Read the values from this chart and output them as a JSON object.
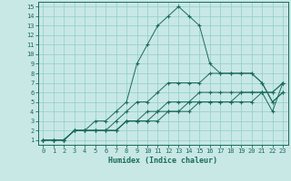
{
  "xlabel": "Humidex (Indice chaleur)",
  "xlim": [
    -0.5,
    23.5
  ],
  "ylim": [
    0.5,
    15.5
  ],
  "xticks": [
    0,
    1,
    2,
    3,
    4,
    5,
    6,
    7,
    8,
    9,
    10,
    11,
    12,
    13,
    14,
    15,
    16,
    17,
    18,
    19,
    20,
    21,
    22,
    23
  ],
  "yticks": [
    1,
    2,
    3,
    4,
    5,
    6,
    7,
    8,
    9,
    10,
    11,
    12,
    13,
    14,
    15
  ],
  "bg_color": "#c8e8e5",
  "grid_color": "#8ececa",
  "line_color": "#1a6b5a",
  "lines": [
    {
      "x": [
        0,
        1,
        2,
        3,
        4,
        5,
        6,
        7,
        8,
        9,
        10,
        11,
        12,
        13,
        14,
        15,
        16,
        17,
        18,
        19,
        20,
        21,
        22,
        23
      ],
      "y": [
        1,
        1,
        1,
        2,
        2,
        3,
        3,
        4,
        5,
        9,
        11,
        13,
        14,
        15,
        14,
        13,
        9,
        8,
        8,
        8,
        8,
        7,
        5,
        6
      ]
    },
    {
      "x": [
        0,
        1,
        2,
        3,
        4,
        5,
        6,
        7,
        8,
        9,
        10,
        11,
        12,
        13,
        14,
        15,
        16,
        17,
        18,
        19,
        20,
        21,
        22,
        23
      ],
      "y": [
        1,
        1,
        1,
        2,
        2,
        2,
        2,
        3,
        4,
        5,
        5,
        6,
        7,
        7,
        7,
        7,
        8,
        8,
        8,
        8,
        8,
        7,
        5,
        6
      ]
    },
    {
      "x": [
        0,
        1,
        2,
        3,
        4,
        5,
        6,
        7,
        8,
        9,
        10,
        11,
        12,
        13,
        14,
        15,
        16,
        17,
        18,
        19,
        20,
        21,
        22,
        23
      ],
      "y": [
        1,
        1,
        1,
        2,
        2,
        2,
        2,
        2,
        3,
        3,
        4,
        4,
        5,
        5,
        5,
        6,
        6,
        6,
        6,
        6,
        6,
        6,
        6,
        7
      ]
    },
    {
      "x": [
        0,
        1,
        2,
        3,
        4,
        5,
        6,
        7,
        8,
        9,
        10,
        11,
        12,
        13,
        14,
        15,
        16,
        17,
        18,
        19,
        20,
        21,
        22,
        23
      ],
      "y": [
        1,
        1,
        1,
        2,
        2,
        2,
        2,
        2,
        3,
        3,
        3,
        4,
        4,
        4,
        5,
        5,
        5,
        5,
        5,
        6,
        6,
        6,
        6,
        7
      ]
    },
    {
      "x": [
        0,
        1,
        2,
        3,
        4,
        5,
        6,
        7,
        8,
        9,
        10,
        11,
        12,
        13,
        14,
        15,
        16,
        17,
        18,
        19,
        20,
        21,
        22,
        23
      ],
      "y": [
        1,
        1,
        1,
        2,
        2,
        2,
        2,
        2,
        3,
        3,
        3,
        3,
        4,
        4,
        4,
        5,
        5,
        5,
        5,
        5,
        5,
        6,
        4,
        7
      ]
    }
  ]
}
